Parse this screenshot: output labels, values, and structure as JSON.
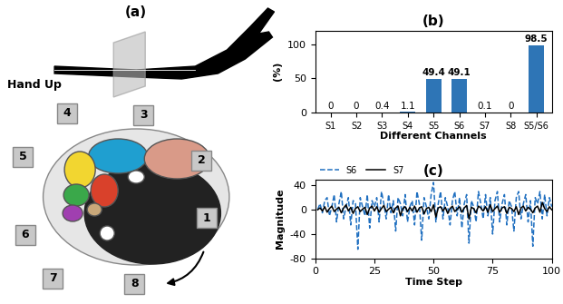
{
  "diagram": {
    "label": "(a)",
    "caption": "Hand Up",
    "sensors": [
      "1",
      "2",
      "3",
      "4",
      "5",
      "6",
      "7",
      "8"
    ]
  },
  "chart_data": [
    {
      "type": "bar",
      "title": "(b)",
      "x_label": "Different Channels",
      "y_label": "(%)",
      "categories": [
        "S1",
        "S2",
        "S3",
        "S4",
        "S5",
        "S6",
        "S7",
        "S8",
        "S5/S6"
      ],
      "values": [
        0,
        0,
        0.4,
        1.1,
        49.4,
        49.1,
        0.1,
        0,
        98.5
      ],
      "color": "#2e75b6",
      "ylim": [
        0,
        120
      ],
      "yticks": [
        0,
        50,
        100
      ],
      "data_labels": true
    },
    {
      "type": "line",
      "title": "(c)",
      "x_label": "Time Step",
      "y_label": "Magnitude",
      "x": [
        1,
        2,
        3,
        4,
        5,
        6,
        7,
        8,
        9,
        10,
        11,
        12,
        13,
        14,
        15,
        16,
        17,
        18,
        19,
        20,
        21,
        22,
        23,
        24,
        25,
        26,
        27,
        28,
        29,
        30,
        31,
        32,
        33,
        34,
        35,
        36,
        37,
        38,
        39,
        40,
        41,
        42,
        43,
        44,
        45,
        46,
        47,
        48,
        49,
        50,
        51,
        52,
        53,
        54,
        55,
        56,
        57,
        58,
        59,
        60,
        61,
        62,
        63,
        64,
        65,
        66,
        67,
        68,
        69,
        70,
        71,
        72,
        73,
        74,
        75,
        76,
        77,
        78,
        79,
        80,
        81,
        82,
        83,
        84,
        85,
        86,
        87,
        88,
        89,
        90,
        91,
        92,
        93,
        94,
        95,
        96,
        97,
        98,
        99,
        100
      ],
      "series": [
        {
          "name": "S6",
          "color": "#1f6fc0",
          "line_style": "dashed",
          "values": [
            0,
            10,
            -5,
            15,
            20,
            -10,
            5,
            25,
            -20,
            10,
            30,
            -15,
            5,
            20,
            -25,
            15,
            10,
            -65,
            20,
            5,
            -10,
            25,
            -30,
            15,
            5,
            20,
            -20,
            30,
            10,
            -15,
            25,
            -5,
            15,
            -35,
            20,
            10,
            -10,
            25,
            -20,
            5,
            15,
            -25,
            30,
            10,
            -50,
            20,
            5,
            -15,
            25,
            45,
            -20,
            10,
            30,
            -15,
            20,
            5,
            -25,
            15,
            30,
            -10,
            20,
            -30,
            10,
            25,
            -55,
            15,
            5,
            -20,
            30,
            10,
            -15,
            25,
            -10,
            20,
            -40,
            15,
            30,
            -20,
            10,
            25,
            -25,
            15,
            5,
            -35,
            20,
            30,
            -15,
            10,
            25,
            -20,
            15,
            -60,
            20,
            10,
            30,
            -15,
            25,
            -10,
            20,
            5
          ]
        },
        {
          "name": "S7",
          "color": "#000000",
          "line_style": "solid",
          "values": [
            0,
            3,
            -2,
            5,
            -4,
            2,
            6,
            -3,
            1,
            4,
            -5,
            3,
            8,
            -2,
            4,
            -6,
            2,
            5,
            -3,
            1,
            4,
            -8,
            3,
            6,
            -2,
            5,
            -4,
            2,
            7,
            -3,
            1,
            4,
            -5,
            3,
            6,
            -10,
            2,
            5,
            -3,
            4,
            -2,
            6,
            -4,
            3,
            5,
            -7,
            2,
            4,
            -3,
            8,
            -12,
            3,
            5,
            -2,
            4,
            -6,
            2,
            6,
            -3,
            1,
            5,
            -4,
            3,
            7,
            -15,
            4,
            2,
            -5,
            6,
            3,
            -2,
            5,
            -4,
            8,
            -3,
            2,
            6,
            -4,
            3,
            5,
            -6,
            4,
            2,
            -3,
            5,
            -8,
            3,
            6,
            -2,
            4,
            1,
            -5,
            3,
            6,
            -4,
            12,
            2,
            -3,
            5,
            0
          ]
        }
      ],
      "xlim": [
        0,
        100
      ],
      "xticks": [
        0,
        25,
        50,
        75,
        100
      ],
      "ylim": [
        -80,
        50
      ],
      "yticks": [
        -80,
        -40,
        0,
        40
      ],
      "legend": "upper left"
    }
  ]
}
